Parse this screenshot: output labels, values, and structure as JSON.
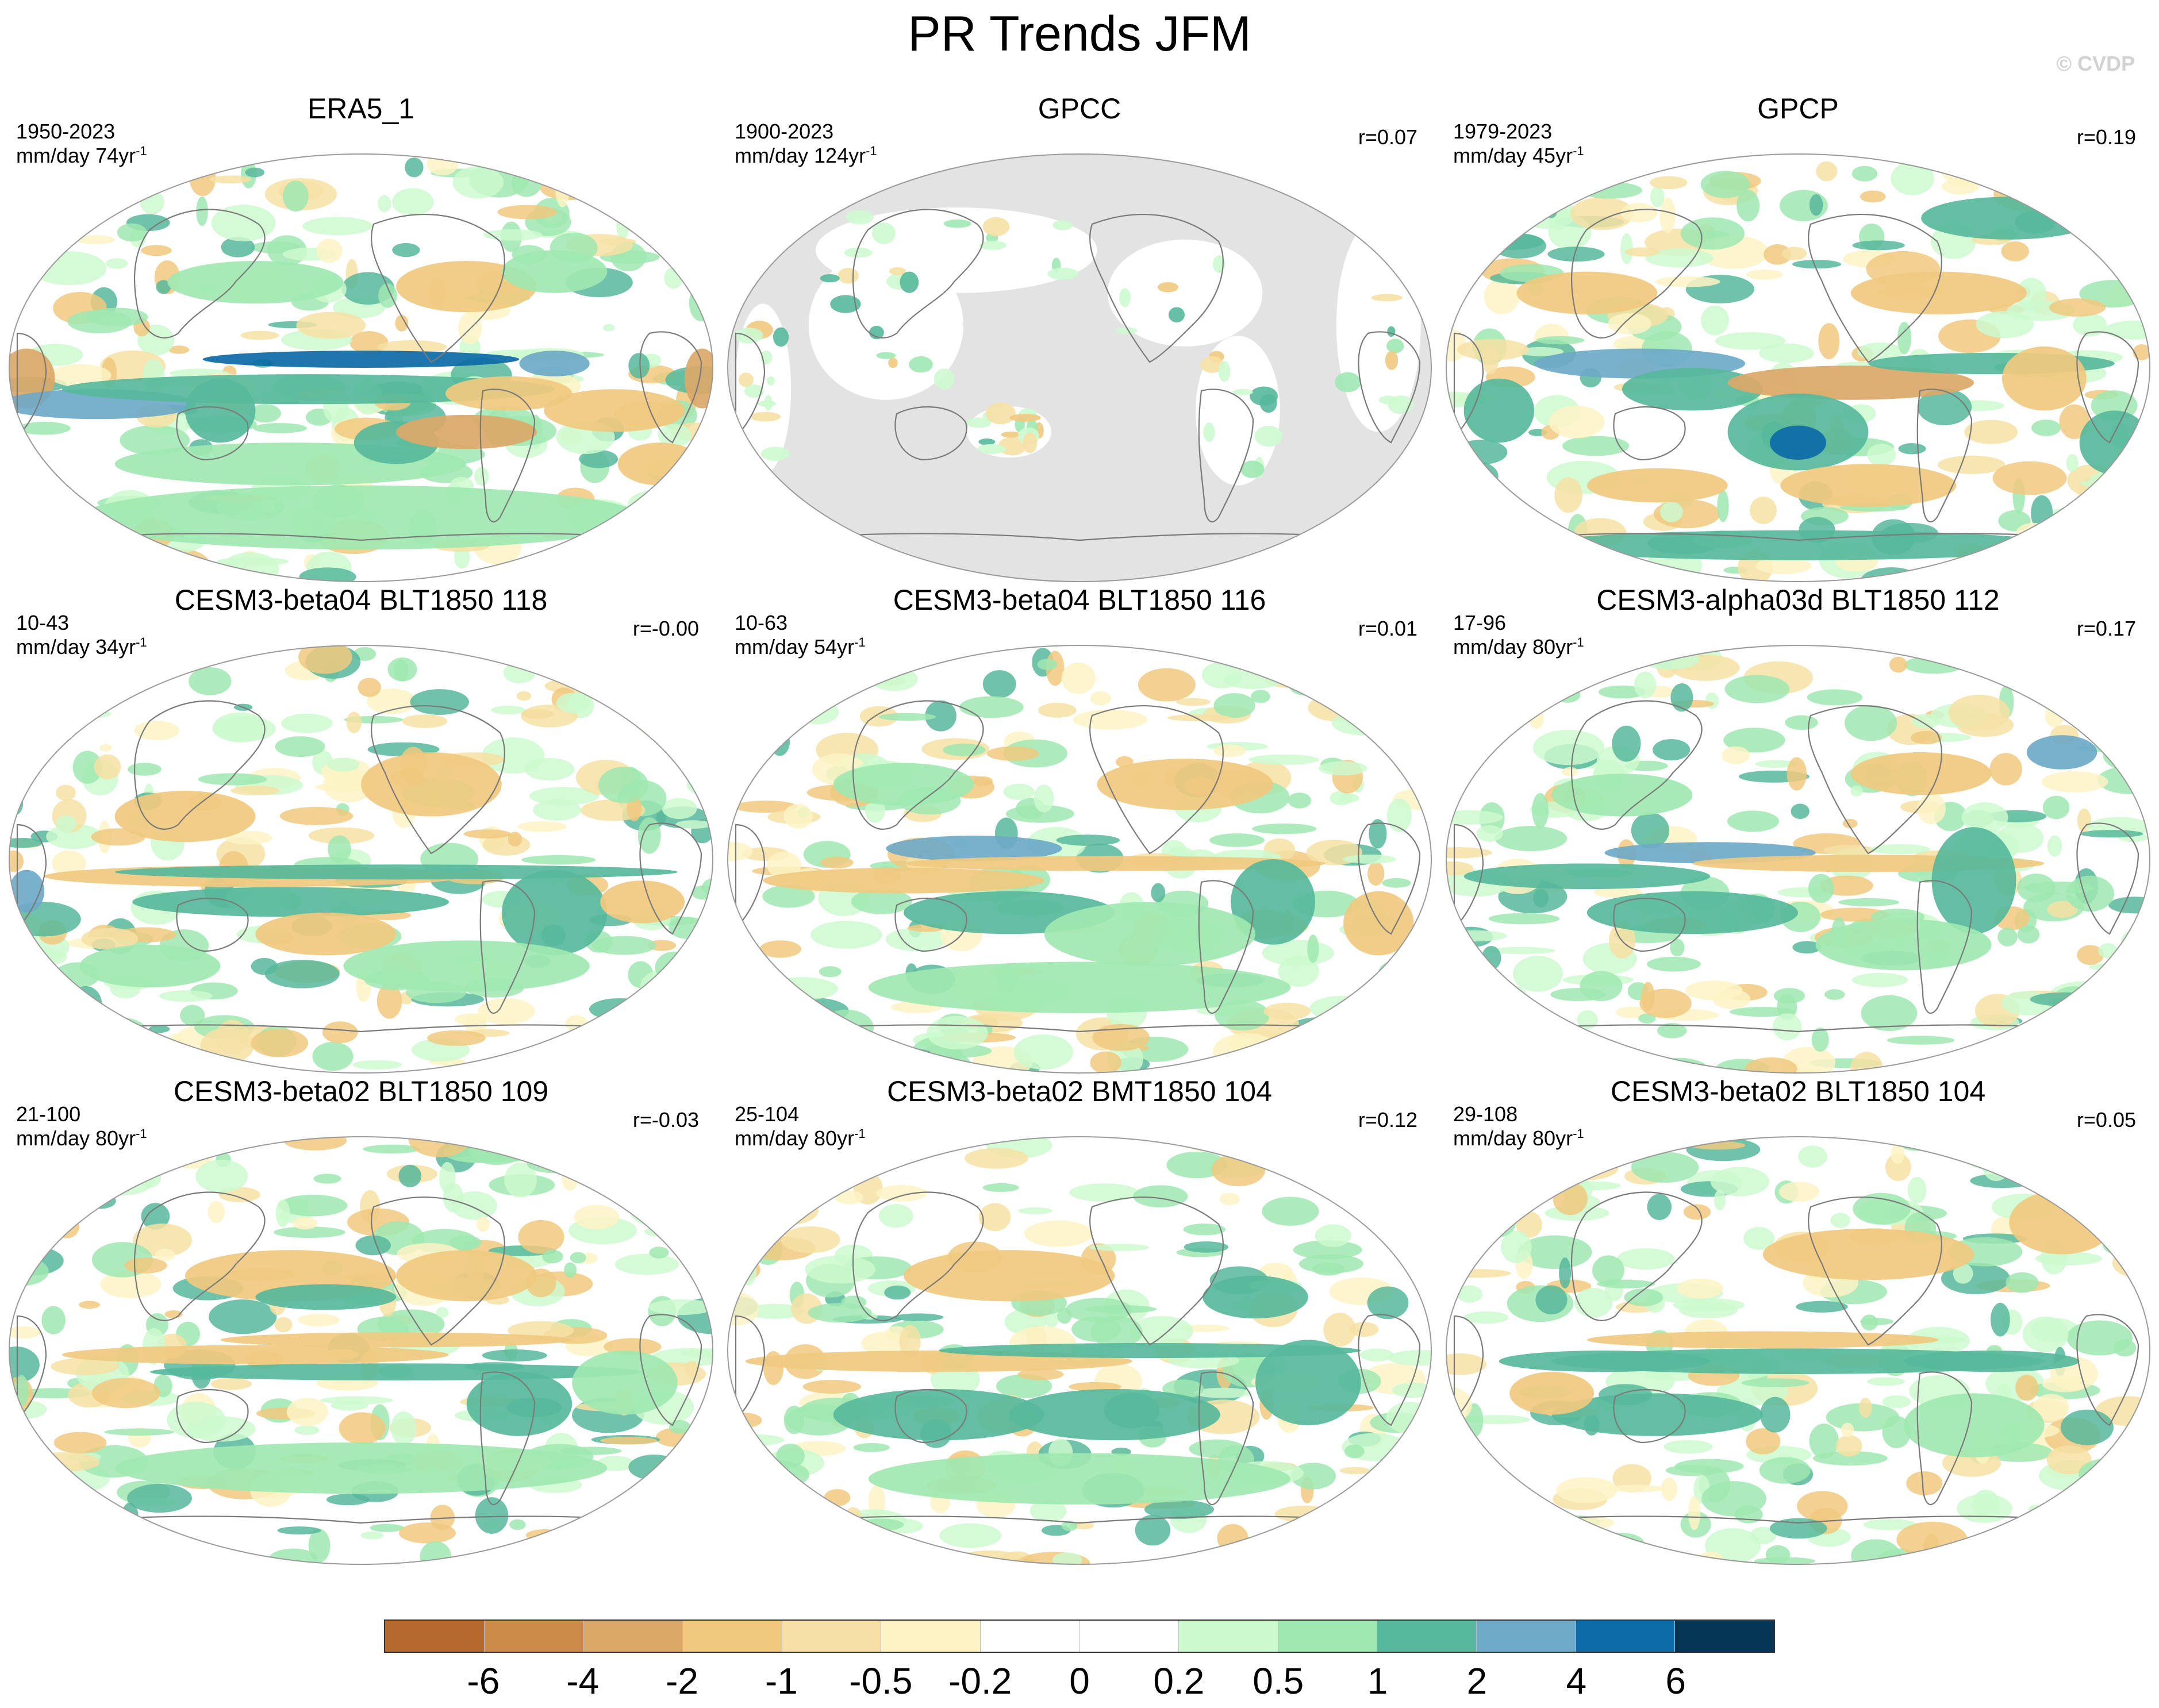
{
  "title": "PR Trends JFM",
  "watermark": "© CVDP",
  "panels": [
    {
      "title": "ERA5_1",
      "years": "1950-2023",
      "units": "mm/day 74yr",
      "exp": "-1",
      "corr": "",
      "pattern": "era5"
    },
    {
      "title": "GPCC",
      "years": "1900-2023",
      "units": "mm/day 124yr",
      "exp": "-1",
      "corr": "r=0.07",
      "pattern": "gpcc"
    },
    {
      "title": "GPCP",
      "years": "1979-2023",
      "units": "mm/day 45yr",
      "exp": "-1",
      "corr": "r=0.19",
      "pattern": "gpcp"
    },
    {
      "title": "CESM3-beta04 BLT1850 118",
      "years": "10-43",
      "units": "mm/day 34yr",
      "exp": "-1",
      "corr": "r=-0.00",
      "pattern": "m1"
    },
    {
      "title": "CESM3-beta04 BLT1850 116",
      "years": "10-63",
      "units": "mm/day 54yr",
      "exp": "-1",
      "corr": "r=0.01",
      "pattern": "m2"
    },
    {
      "title": "CESM3-alpha03d BLT1850 112",
      "years": "17-96",
      "units": "mm/day 80yr",
      "exp": "-1",
      "corr": "r=0.17",
      "pattern": "m3"
    },
    {
      "title": "CESM3-beta02 BLT1850 109",
      "years": "21-100",
      "units": "mm/day 80yr",
      "exp": "-1",
      "corr": "r=-0.03",
      "pattern": "m4"
    },
    {
      "title": "CESM3-beta02 BMT1850 104",
      "years": "25-104",
      "units": "mm/day 80yr",
      "exp": "-1",
      "corr": "r=0.12",
      "pattern": "m5"
    },
    {
      "title": "CESM3-beta02 BLT1850 104",
      "years": "29-108",
      "units": "mm/day 80yr",
      "exp": "-1",
      "corr": "r=0.05",
      "pattern": "m6"
    }
  ],
  "colorbar": {
    "colors": [
      "#b5692e",
      "#cc8a48",
      "#dba868",
      "#f0c97f",
      "#f6e0a5",
      "#fdf3c4",
      "#ffffff",
      "#ffffff",
      "#cdf9cf",
      "#9fe8b1",
      "#57b99b",
      "#6ea9c7",
      "#0c6aa6",
      "#053656"
    ],
    "labels": [
      "-6",
      "-4",
      "-2",
      "-1",
      "-0.5",
      "-0.2",
      "0",
      "0.2",
      "0.5",
      "1",
      "2",
      "4",
      "6"
    ]
  },
  "colors": {
    "missing": "#e3e3e3",
    "coast": "#7a7a7a",
    "outline": "#9a9a9a"
  }
}
